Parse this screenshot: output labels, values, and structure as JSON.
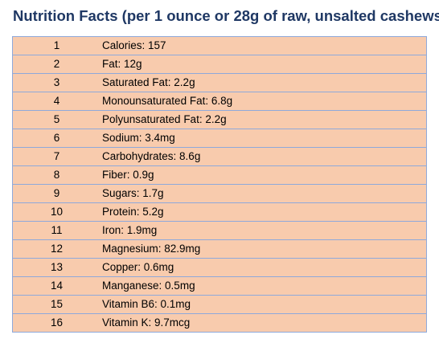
{
  "title": "Nutrition Facts (per 1 ounce or 28g of raw, unsalted cashews",
  "colors": {
    "title": "#1f3864",
    "row_fill": "#f8cbad",
    "grid": "#8ea9db"
  },
  "rows": [
    {
      "n": "1",
      "text": "Calories: 157"
    },
    {
      "n": "2",
      "text": "Fat: 12g"
    },
    {
      "n": "3",
      "text": "Saturated Fat: 2.2g"
    },
    {
      "n": "4",
      "text": "Monounsaturated Fat: 6.8g"
    },
    {
      "n": "5",
      "text": "Polyunsaturated Fat: 2.2g"
    },
    {
      "n": "6",
      "text": "Sodium: 3.4mg"
    },
    {
      "n": "7",
      "text": "Carbohydrates: 8.6g"
    },
    {
      "n": "8",
      "text": "Fiber: 0.9g"
    },
    {
      "n": "9",
      "text": "Sugars: 1.7g"
    },
    {
      "n": "10",
      "text": "Protein: 5.2g"
    },
    {
      "n": "11",
      "text": "Iron: 1.9mg"
    },
    {
      "n": "12",
      "text": "Magnesium: 82.9mg"
    },
    {
      "n": "13",
      "text": "Copper: 0.6mg"
    },
    {
      "n": "14",
      "text": "Manganese: 0.5mg"
    },
    {
      "n": "15",
      "text": "Vitamin B6: 0.1mg"
    },
    {
      "n": "16",
      "text": "Vitamin K: 9.7mcg"
    }
  ]
}
